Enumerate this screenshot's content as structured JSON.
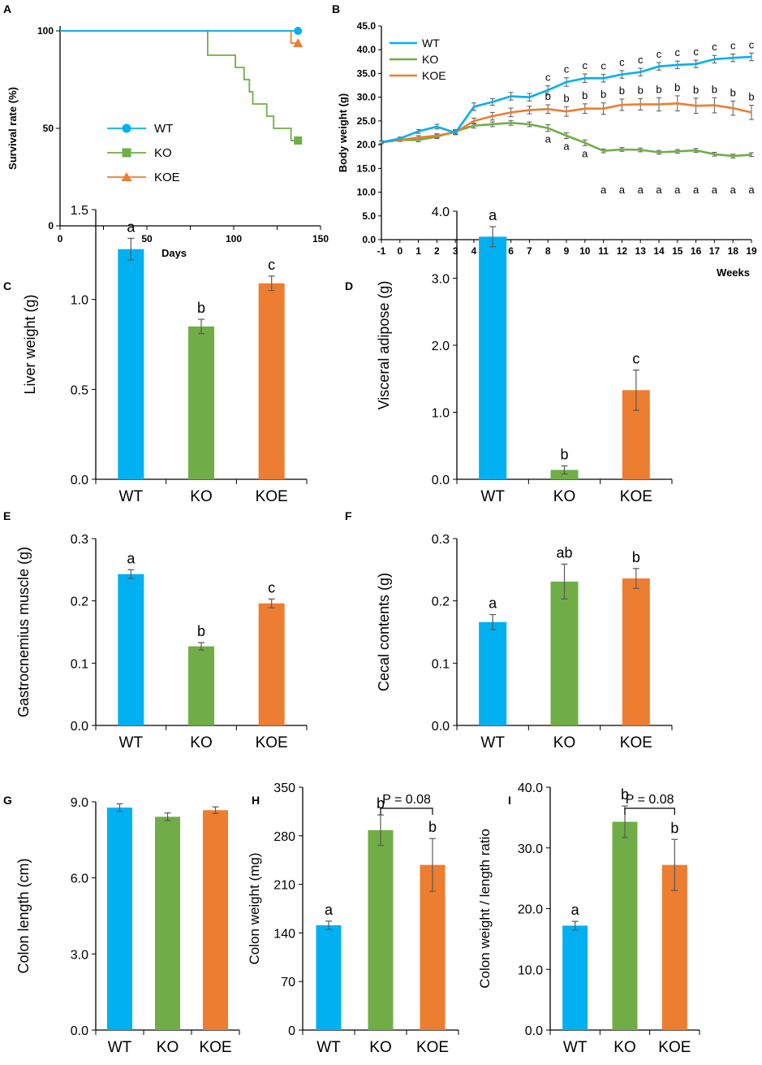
{
  "colors": {
    "WT": "#00b0f0",
    "KO": "#70ad47",
    "KOE": "#ed7d31",
    "axis": "#000000",
    "err": "#595959"
  },
  "chart_data": [
    {
      "panel": "A",
      "type": "line",
      "style": "survival-step",
      "xlabel": "Days",
      "ylabel": "Survival rate (%)",
      "xlim": [
        0,
        150
      ],
      "ylim": [
        0,
        100
      ],
      "x_ticks": [
        0,
        50,
        100,
        150
      ],
      "y_ticks": [
        0,
        50,
        100
      ],
      "legend": [
        "WT",
        "KO",
        "KOE"
      ],
      "series": [
        {
          "name": "WT",
          "marker": "circle",
          "points": [
            [
              0,
              100
            ],
            [
              137,
              100
            ]
          ]
        },
        {
          "name": "KO",
          "marker": "square",
          "points": [
            [
              0,
              100
            ],
            [
              85,
              100
            ],
            [
              85,
              87.5
            ],
            [
              101,
              87.5
            ],
            [
              101,
              81.25
            ],
            [
              106,
              81.25
            ],
            [
              106,
              75
            ],
            [
              109,
              75
            ],
            [
              109,
              68.75
            ],
            [
              111,
              68.75
            ],
            [
              111,
              62.5
            ],
            [
              119,
              62.5
            ],
            [
              119,
              56.25
            ],
            [
              123,
              56.25
            ],
            [
              123,
              50
            ],
            [
              133,
              50
            ],
            [
              133,
              43.75
            ],
            [
              137,
              43.75
            ]
          ]
        },
        {
          "name": "KOE",
          "marker": "triangle",
          "points": [
            [
              0,
              100
            ],
            [
              133,
              100
            ],
            [
              133,
              93.75
            ],
            [
              137,
              93.75
            ]
          ]
        }
      ]
    },
    {
      "panel": "B",
      "type": "line",
      "xlabel": "Weeks",
      "ylabel": "Body weight (g)",
      "ylim": [
        0,
        45
      ],
      "y_ticks": [
        "0.0",
        "5.0",
        "10.0",
        "15.0",
        "20.0",
        "25.0",
        "30.0",
        "35.0",
        "40.0",
        "45.0"
      ],
      "x": [
        -1,
        0,
        1,
        2,
        3,
        4,
        5,
        6,
        7,
        8,
        9,
        10,
        11,
        12,
        13,
        14,
        15,
        16,
        17,
        18,
        19
      ],
      "x_tick_labels": [
        "-1",
        "0",
        "1",
        "2",
        "3",
        "4",
        "5",
        "6",
        "7",
        "8",
        "9",
        "10",
        "11",
        "12",
        "13",
        "14",
        "15",
        "16",
        "17",
        "18",
        "19"
      ],
      "legend": [
        "WT",
        "KO",
        "KOE"
      ],
      "series": [
        {
          "name": "WT",
          "values": [
            20.5,
            21.3,
            22.8,
            23.8,
            22.5,
            28.0,
            29.0,
            30.2,
            30.0,
            31.5,
            33.2,
            34.0,
            34.0,
            34.8,
            35.3,
            36.5,
            36.8,
            37.0,
            38.0,
            38.3,
            38.5
          ],
          "err": [
            0.3,
            0.3,
            0.4,
            0.5,
            0.4,
            0.8,
            0.7,
            0.8,
            0.8,
            0.9,
            0.9,
            0.9,
            0.8,
            0.8,
            0.8,
            0.8,
            0.8,
            0.8,
            0.8,
            0.8,
            0.8
          ]
        },
        {
          "name": "KO",
          "values": [
            20.5,
            21.0,
            21.0,
            21.7,
            22.8,
            24.0,
            24.3,
            24.6,
            24.3,
            23.5,
            21.9,
            20.4,
            18.7,
            19.0,
            18.9,
            18.4,
            18.6,
            18.8,
            18.0,
            17.6,
            17.9
          ],
          "err": [
            0.3,
            0.3,
            0.4,
            0.4,
            0.4,
            0.5,
            0.5,
            0.5,
            0.5,
            0.7,
            0.6,
            0.6,
            0.4,
            0.4,
            0.4,
            0.4,
            0.4,
            0.4,
            0.4,
            0.4,
            0.4
          ]
        },
        {
          "name": "KOE",
          "values": [
            20.5,
            21.0,
            21.5,
            21.9,
            22.6,
            25.0,
            26.0,
            26.8,
            27.3,
            27.5,
            27.0,
            27.6,
            27.6,
            28.4,
            28.5,
            28.5,
            28.7,
            28.2,
            28.3,
            27.7,
            26.8
          ],
          "err": [
            0.3,
            0.3,
            0.4,
            0.4,
            0.4,
            0.6,
            0.8,
            0.9,
            0.8,
            0.9,
            1.0,
            1.0,
            1.2,
            1.2,
            1.2,
            1.4,
            1.6,
            1.6,
            1.6,
            1.5,
            1.5
          ]
        }
      ],
      "significance_letters": [
        {
          "series": "WT",
          "from_week": 8,
          "letters": [
            "c",
            "c",
            "c",
            "c",
            "c",
            "c",
            "c",
            "c",
            "c",
            "c",
            "c",
            "c"
          ]
        },
        {
          "series": "KOE",
          "from_week": 8,
          "letters": [
            "b",
            "b",
            "b",
            "b",
            "b",
            "b",
            "b",
            "b",
            "b",
            "b",
            "b",
            "b"
          ]
        },
        {
          "series": "KO",
          "from_week": 8,
          "letters": [
            "a",
            "a",
            "a",
            "a",
            "a",
            "a",
            "a",
            "a",
            "a",
            "a",
            "a",
            "a"
          ]
        }
      ]
    },
    {
      "panel": "C",
      "type": "bar",
      "ylabel": "Liver weight (g)",
      "categories": [
        "WT",
        "KO",
        "KOE"
      ],
      "values": [
        1.28,
        0.85,
        1.09
      ],
      "err": [
        0.06,
        0.04,
        0.04
      ],
      "letters": [
        "a",
        "b",
        "c"
      ],
      "ylim": [
        0,
        1.5
      ],
      "y_ticks": [
        "0.0",
        "0.5",
        "1.0",
        "1.5"
      ]
    },
    {
      "panel": "D",
      "type": "bar",
      "ylabel": "Visceral adipose (g)",
      "categories": [
        "WT",
        "KO",
        "KOE"
      ],
      "values": [
        3.62,
        0.14,
        1.33
      ],
      "err": [
        0.15,
        0.06,
        0.3
      ],
      "letters": [
        "a",
        "b",
        "c"
      ],
      "ylim": [
        0,
        4
      ],
      "y_ticks": [
        "0.0",
        "1.0",
        "2.0",
        "3.0",
        "4.0"
      ]
    },
    {
      "panel": "E",
      "type": "bar",
      "ylabel": "Gastrocnemius muscle (g)",
      "categories": [
        "WT",
        "KO",
        "KOE"
      ],
      "values": [
        0.243,
        0.127,
        0.196
      ],
      "err": [
        0.007,
        0.006,
        0.007
      ],
      "letters": [
        "a",
        "b",
        "c"
      ],
      "ylim": [
        0,
        0.3
      ],
      "y_ticks": [
        "0.0",
        "0.1",
        "0.2",
        "0.3"
      ]
    },
    {
      "panel": "F",
      "type": "bar",
      "ylabel": "Cecal contents (g)",
      "categories": [
        "WT",
        "KO",
        "KOE"
      ],
      "values": [
        0.166,
        0.231,
        0.236
      ],
      "err": [
        0.012,
        0.028,
        0.016
      ],
      "letters": [
        "a",
        "ab",
        "b"
      ],
      "ylim": [
        0,
        0.3
      ],
      "y_ticks": [
        "0.0",
        "0.1",
        "0.2",
        "0.3"
      ]
    },
    {
      "panel": "G",
      "type": "bar",
      "ylabel": "Colon length (cm)",
      "categories": [
        "WT",
        "KO",
        "KOE"
      ],
      "values": [
        8.77,
        8.41,
        8.67
      ],
      "err": [
        0.15,
        0.15,
        0.13
      ],
      "letters": [
        "",
        "",
        ""
      ],
      "ylim": [
        0,
        9
      ],
      "y_ticks": [
        "0.0",
        "3.0",
        "6.0",
        "9.0"
      ]
    },
    {
      "panel": "H",
      "type": "bar",
      "ylabel": "Colon weight (mg)",
      "categories": [
        "WT",
        "KO",
        "KOE"
      ],
      "values": [
        151,
        288,
        238
      ],
      "err": [
        6,
        22,
        38
      ],
      "letters": [
        "a",
        "b",
        "b"
      ],
      "ylim": [
        0,
        350
      ],
      "y_ticks": [
        "0",
        "70",
        "140",
        "210",
        "280",
        "350"
      ],
      "bracket": {
        "from": "KO",
        "to": "KOE",
        "label": "P = 0.08"
      }
    },
    {
      "panel": "I",
      "type": "bar",
      "ylabel": "Colon weight / length ratio",
      "categories": [
        "WT",
        "KO",
        "KOE"
      ],
      "values": [
        17.2,
        34.3,
        27.2
      ],
      "err": [
        0.7,
        2.6,
        4.2
      ],
      "letters": [
        "a",
        "b",
        "b"
      ],
      "ylim": [
        0,
        40
      ],
      "y_ticks": [
        "0.0",
        "10.0",
        "20.0",
        "30.0",
        "40.0"
      ],
      "bracket": {
        "from": "KO",
        "to": "KOE",
        "label": "P = 0.08"
      }
    }
  ]
}
